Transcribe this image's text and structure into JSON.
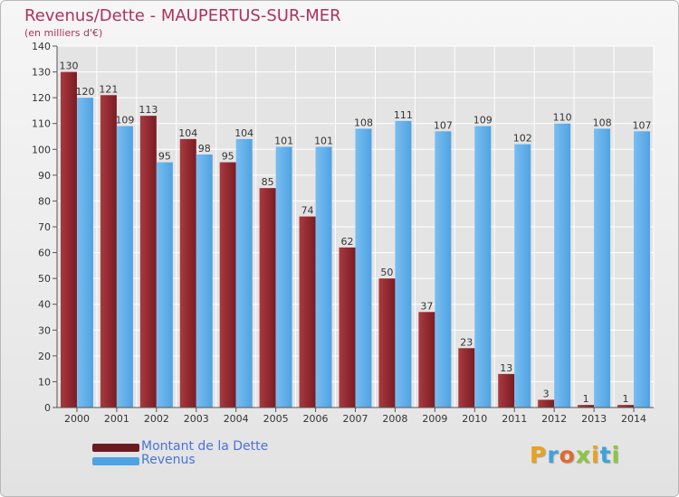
{
  "title": "Revenus/Dette - MAUPERTUS-SUR-MER",
  "subtitle": "(en milliers d'€)",
  "colors": {
    "dette": "#7a1c22",
    "dette_light": "#a83a40",
    "revenus": "#4fa3e3",
    "revenus_light": "#79bdf0",
    "title": "#b0325a",
    "legend_text": "#4a72d8"
  },
  "legend": [
    {
      "label": "Montant de la Dette",
      "color": "#6b1a1f"
    },
    {
      "label": "Revenus",
      "color": "#4fa3e3"
    }
  ],
  "logo": {
    "letters": [
      "P",
      "r",
      "o",
      "x",
      "i",
      "t",
      "i"
    ],
    "colors": [
      "#e8a21d",
      "#3fa1dc",
      "#e06a2b",
      "#8cc63f",
      "#e8a21d",
      "#3fa1dc",
      "#8cc63f"
    ]
  },
  "chart_data": {
    "type": "bar",
    "title": "Revenus/Dette - MAUPERTUS-SUR-MER",
    "subtitle": "(en milliers d'€)",
    "categories": [
      "2000",
      "2001",
      "2002",
      "2003",
      "2004",
      "2005",
      "2006",
      "2007",
      "2008",
      "2009",
      "2010",
      "2011",
      "2012",
      "2013",
      "2014"
    ],
    "series": [
      {
        "name": "Montant de la Dette",
        "values": [
          130,
          121,
          113,
          104,
          95,
          85,
          74,
          62,
          50,
          37,
          23,
          13,
          3,
          1,
          1
        ]
      },
      {
        "name": "Revenus",
        "values": [
          120,
          109,
          95,
          98,
          104,
          101,
          101,
          108,
          111,
          107,
          109,
          102,
          110,
          108,
          107
        ]
      }
    ],
    "ylim": [
      0,
      140
    ],
    "yticks": [
      0,
      10,
      20,
      30,
      40,
      50,
      60,
      70,
      80,
      90,
      100,
      110,
      120,
      130,
      140
    ],
    "grid": true,
    "legend_position": "bottom-left"
  }
}
